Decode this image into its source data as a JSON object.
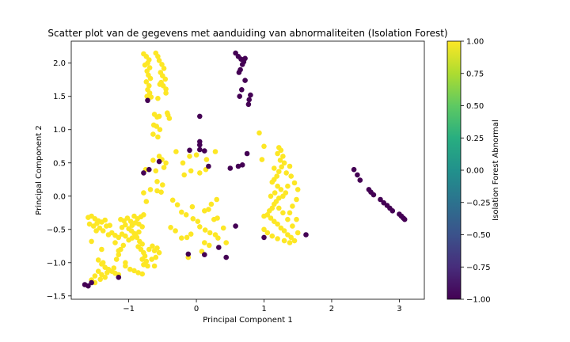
{
  "chart_data": {
    "type": "scatter",
    "title": "Scatter plot van de gegevens met aanduiding van abnormaliteiten (Isolation Forest)",
    "xlabel": "Principal Component 1",
    "ylabel": "Principal Component 2",
    "xlim": [
      -1.85,
      3.37
    ],
    "ylim": [
      -1.55,
      2.33
    ],
    "xticks": [
      -1,
      0,
      1,
      2,
      3
    ],
    "yticks": [
      -1.5,
      -1.0,
      -0.5,
      0.0,
      0.5,
      1.0,
      1.5,
      2.0
    ],
    "grid": false,
    "colorbar": {
      "label": "Isolation Forest Abnormal",
      "colormap": "viridis",
      "range": [
        -1.0,
        1.0
      ],
      "ticks": [
        -1.0,
        -0.75,
        -0.5,
        -0.25,
        0.0,
        0.25,
        0.5,
        0.75,
        1.0
      ],
      "tick_labels": [
        "−1.00",
        "−0.75",
        "−0.50",
        "−0.25",
        "0.00",
        "0.25",
        "0.50",
        "0.75",
        "1.00"
      ]
    },
    "colors": {
      "normal": "#fde725",
      "abnormal": "#440154"
    },
    "series": [
      {
        "value": 1,
        "points": [
          [
            -0.78,
            2.14
          ],
          [
            -0.74,
            2.1
          ],
          [
            -0.7,
            2.05
          ],
          [
            -0.72,
            2.0
          ],
          [
            -0.76,
            1.97
          ],
          [
            -0.69,
            1.93
          ],
          [
            -0.73,
            1.88
          ],
          [
            -0.71,
            1.82
          ],
          [
            -0.68,
            1.77
          ],
          [
            -0.74,
            1.72
          ],
          [
            -0.7,
            1.66
          ],
          [
            -0.72,
            1.6
          ],
          [
            -0.69,
            1.55
          ],
          [
            -0.73,
            1.5
          ],
          [
            -0.6,
            2.15
          ],
          [
            -0.57,
            2.1
          ],
          [
            -0.55,
            2.04
          ],
          [
            -0.51,
            1.98
          ],
          [
            -0.48,
            1.92
          ],
          [
            -0.53,
            1.86
          ],
          [
            -0.5,
            1.81
          ],
          [
            -0.46,
            1.76
          ],
          [
            -0.52,
            1.71
          ],
          [
            -0.49,
            1.66
          ],
          [
            -0.45,
            1.61
          ],
          [
            -0.54,
            1.68
          ],
          [
            -0.67,
            1.49
          ],
          [
            -0.57,
            1.47
          ],
          [
            -0.45,
            1.55
          ],
          [
            -0.62,
            1.23
          ],
          [
            -0.58,
            1.19
          ],
          [
            -0.55,
            1.2
          ],
          [
            -0.63,
            1.07
          ],
          [
            -0.59,
            1.05
          ],
          [
            -0.54,
            1.0
          ],
          [
            -0.64,
            0.93
          ],
          [
            -0.57,
            0.89
          ],
          [
            -0.43,
            1.25
          ],
          [
            -0.42,
            1.22
          ],
          [
            -0.4,
            1.17
          ],
          [
            -0.55,
            0.6
          ],
          [
            -0.51,
            0.55
          ],
          [
            -0.45,
            0.5
          ],
          [
            -0.48,
            0.43
          ],
          [
            -0.3,
            0.67
          ],
          [
            -0.2,
            0.5
          ],
          [
            -0.1,
            0.6
          ],
          [
            0.0,
            0.62
          ],
          [
            0.15,
            0.55
          ],
          [
            0.28,
            0.67
          ],
          [
            -0.6,
            0.38
          ],
          [
            -0.58,
            0.22
          ],
          [
            -0.5,
            0.17
          ],
          [
            -0.68,
            0.1
          ],
          [
            -0.78,
            0.05
          ],
          [
            -0.74,
            -0.08
          ],
          [
            -0.58,
            0.08
          ],
          [
            -0.52,
            0.06
          ],
          [
            -0.18,
            0.32
          ],
          [
            -0.08,
            0.38
          ],
          [
            0.05,
            0.35
          ],
          [
            0.14,
            0.4
          ],
          [
            -0.35,
            -0.06
          ],
          [
            -0.28,
            -0.13
          ],
          [
            -0.22,
            -0.24
          ],
          [
            -0.15,
            -0.28
          ],
          [
            -0.05,
            -0.34
          ],
          [
            0.02,
            -0.38
          ],
          [
            0.12,
            -0.22
          ],
          [
            0.18,
            -0.2
          ],
          [
            0.22,
            -0.12
          ],
          [
            0.26,
            -0.35
          ],
          [
            0.31,
            -0.33
          ],
          [
            -0.38,
            -0.47
          ],
          [
            -0.31,
            -0.52
          ],
          [
            -0.22,
            -0.63
          ],
          [
            -0.14,
            -0.62
          ],
          [
            -0.08,
            -0.57
          ],
          [
            0.05,
            -0.46
          ],
          [
            0.13,
            -0.51
          ],
          [
            0.2,
            -0.55
          ],
          [
            0.28,
            -0.58
          ],
          [
            0.32,
            -0.63
          ],
          [
            0.4,
            -0.48
          ],
          [
            0.12,
            -0.7
          ],
          [
            0.19,
            -0.74
          ],
          [
            0.08,
            -0.83
          ],
          [
            -0.12,
            -0.92
          ],
          [
            0.44,
            -0.7
          ],
          [
            -0.06,
            -0.16
          ],
          [
            0.3,
            -0.05
          ],
          [
            -0.75,
            0.4
          ],
          [
            -0.64,
            0.54
          ],
          [
            -1.6,
            -0.32
          ],
          [
            -1.55,
            -0.3
          ],
          [
            -1.5,
            -0.34
          ],
          [
            -1.45,
            -0.37
          ],
          [
            -1.4,
            -0.39
          ],
          [
            -1.35,
            -0.36
          ],
          [
            -1.58,
            -0.42
          ],
          [
            -1.52,
            -0.45
          ],
          [
            -1.47,
            -0.41
          ],
          [
            -1.43,
            -0.48
          ],
          [
            -1.38,
            -0.52
          ],
          [
            -1.33,
            -0.45
          ],
          [
            -1.28,
            -0.44
          ],
          [
            -1.25,
            -0.55
          ],
          [
            -1.2,
            -0.59
          ],
          [
            -1.15,
            -0.62
          ],
          [
            -1.1,
            -0.57
          ],
          [
            -1.05,
            -0.6
          ],
          [
            -1.0,
            -0.66
          ],
          [
            -0.95,
            -0.63
          ],
          [
            -0.9,
            -0.58
          ],
          [
            -0.85,
            -0.54
          ],
          [
            -1.12,
            -0.35
          ],
          [
            -1.07,
            -0.37
          ],
          [
            -1.02,
            -0.33
          ],
          [
            -0.97,
            -0.38
          ],
          [
            -0.92,
            -0.3
          ],
          [
            -0.87,
            -0.34
          ],
          [
            -0.82,
            -0.31
          ],
          [
            -0.78,
            -0.28
          ],
          [
            -1.1,
            -0.47
          ],
          [
            -1.05,
            -0.43
          ],
          [
            -1.0,
            -0.49
          ],
          [
            -0.95,
            -0.44
          ],
          [
            -0.9,
            -0.4
          ],
          [
            -0.85,
            -0.42
          ],
          [
            -0.8,
            -0.46
          ],
          [
            -0.96,
            -0.52
          ],
          [
            -0.92,
            -0.56
          ],
          [
            -0.88,
            -0.62
          ],
          [
            -0.84,
            -0.68
          ],
          [
            -0.8,
            -0.72
          ],
          [
            -0.86,
            -0.76
          ],
          [
            -0.82,
            -0.8
          ],
          [
            -0.78,
            -0.85
          ],
          [
            -0.76,
            -0.9
          ],
          [
            -0.8,
            -0.95
          ],
          [
            -0.74,
            -0.98
          ],
          [
            -0.78,
            -1.03
          ],
          [
            -0.72,
            -1.05
          ],
          [
            -0.7,
            -0.8
          ],
          [
            -0.65,
            -0.75
          ],
          [
            -0.62,
            -0.82
          ],
          [
            -0.58,
            -0.78
          ],
          [
            -0.55,
            -0.85
          ],
          [
            -0.6,
            -0.92
          ],
          [
            -0.66,
            -0.95
          ],
          [
            -1.08,
            -0.74
          ],
          [
            -1.12,
            -0.8
          ],
          [
            -1.15,
            -0.88
          ],
          [
            -1.18,
            -0.95
          ],
          [
            -1.3,
            -0.58
          ],
          [
            -1.48,
            -0.52
          ],
          [
            -1.55,
            -0.68
          ],
          [
            -1.4,
            -0.8
          ],
          [
            -1.2,
            -0.7
          ],
          [
            -1.45,
            -0.96
          ],
          [
            -1.4,
            -1.02
          ],
          [
            -1.35,
            -1.07
          ],
          [
            -1.3,
            -1.1
          ],
          [
            -1.25,
            -1.13
          ],
          [
            -1.2,
            -1.16
          ],
          [
            -1.15,
            -1.18
          ],
          [
            -1.45,
            -1.13
          ],
          [
            -1.4,
            -1.18
          ],
          [
            -1.35,
            -1.22
          ],
          [
            -1.5,
            -1.2
          ],
          [
            -1.55,
            -1.26
          ],
          [
            -1.5,
            -1.3
          ],
          [
            -1.42,
            -1.25
          ],
          [
            -1.32,
            -1.15
          ],
          [
            -1.22,
            -1.08
          ],
          [
            -1.05,
            -1.05
          ],
          [
            -0.98,
            -1.1
          ],
          [
            -0.92,
            -1.12
          ],
          [
            -0.86,
            -1.15
          ],
          [
            -0.8,
            -1.17
          ],
          [
            -0.62,
            -1.05
          ],
          [
            -1.15,
            -0.82
          ],
          [
            -1.05,
            -1.0
          ],
          [
            -1.38,
            -1.0
          ],
          [
            0.93,
            0.95
          ],
          [
            1.0,
            0.75
          ],
          [
            0.97,
            0.55
          ],
          [
            1.22,
            0.73
          ],
          [
            1.25,
            0.69
          ],
          [
            1.2,
            0.64
          ],
          [
            1.28,
            0.6
          ],
          [
            1.24,
            0.54
          ],
          [
            1.3,
            0.5
          ],
          [
            1.26,
            0.44
          ],
          [
            1.22,
            0.37
          ],
          [
            1.19,
            0.3
          ],
          [
            1.15,
            0.25
          ],
          [
            1.12,
            0.21
          ],
          [
            1.2,
            0.15
          ],
          [
            1.25,
            0.1
          ],
          [
            1.32,
            0.05
          ],
          [
            1.28,
            0.0
          ],
          [
            1.22,
            -0.03
          ],
          [
            1.18,
            -0.08
          ],
          [
            1.15,
            -0.12
          ],
          [
            1.12,
            -0.18
          ],
          [
            1.08,
            -0.22
          ],
          [
            1.05,
            -0.28
          ],
          [
            1.1,
            -0.33
          ],
          [
            1.15,
            -0.38
          ],
          [
            1.2,
            -0.42
          ],
          [
            1.25,
            -0.48
          ],
          [
            1.3,
            -0.52
          ],
          [
            1.35,
            -0.58
          ],
          [
            1.4,
            -0.62
          ],
          [
            1.45,
            -0.67
          ],
          [
            1.38,
            -0.7
          ],
          [
            1.3,
            -0.67
          ],
          [
            1.2,
            -0.64
          ],
          [
            1.12,
            -0.6
          ],
          [
            1.05,
            -0.55
          ],
          [
            1.0,
            -0.5
          ],
          [
            1.0,
            -0.3
          ],
          [
            1.4,
            0.3
          ],
          [
            1.45,
            0.2
          ],
          [
            1.5,
            0.1
          ],
          [
            1.48,
            -0.05
          ],
          [
            1.42,
            -0.15
          ],
          [
            1.38,
            -0.25
          ],
          [
            1.33,
            0.35
          ],
          [
            1.38,
            0.45
          ],
          [
            1.15,
            0.42
          ],
          [
            1.48,
            -0.35
          ],
          [
            1.5,
            -0.55
          ],
          [
            1.42,
            -0.45
          ],
          [
            1.35,
            -0.35
          ],
          [
            1.28,
            -0.25
          ],
          [
            1.22,
            -0.18
          ],
          [
            1.16,
            0.05
          ],
          [
            1.1,
            0.0
          ],
          [
            1.35,
            0.15
          ]
        ]
      },
      {
        "value": -1,
        "points": [
          [
            -0.72,
            1.44
          ],
          [
            0.05,
            1.2
          ],
          [
            0.58,
            2.15
          ],
          [
            0.62,
            2.1
          ],
          [
            0.66,
            2.06
          ],
          [
            0.7,
            2.02
          ],
          [
            0.72,
            2.07
          ],
          [
            0.68,
            1.98
          ],
          [
            0.65,
            1.9
          ],
          [
            0.63,
            1.86
          ],
          [
            0.67,
            1.6
          ],
          [
            0.72,
            1.74
          ],
          [
            0.78,
            1.45
          ],
          [
            0.8,
            1.52
          ],
          [
            0.64,
            1.5
          ],
          [
            0.77,
            1.38
          ],
          [
            -0.55,
            0.52
          ],
          [
            -0.78,
            0.35
          ],
          [
            -0.7,
            0.4
          ],
          [
            -0.1,
            0.69
          ],
          [
            0.05,
            0.82
          ],
          [
            0.05,
            0.77
          ],
          [
            0.05,
            0.7
          ],
          [
            0.12,
            0.68
          ],
          [
            0.18,
            0.45
          ],
          [
            0.5,
            0.42
          ],
          [
            0.62,
            0.45
          ],
          [
            0.68,
            0.47
          ],
          [
            0.75,
            0.64
          ],
          [
            0.58,
            -0.45
          ],
          [
            0.33,
            -0.77
          ],
          [
            0.44,
            -0.92
          ],
          [
            0.12,
            -0.88
          ],
          [
            -0.12,
            -0.87
          ],
          [
            1.0,
            -0.62
          ],
          [
            1.62,
            -0.58
          ],
          [
            2.33,
            0.4
          ],
          [
            2.38,
            0.32
          ],
          [
            2.42,
            0.24
          ],
          [
            2.55,
            0.1
          ],
          [
            2.58,
            0.06
          ],
          [
            2.62,
            0.02
          ],
          [
            2.72,
            -0.05
          ],
          [
            2.77,
            -0.1
          ],
          [
            2.82,
            -0.14
          ],
          [
            2.86,
            -0.18
          ],
          [
            2.9,
            -0.22
          ],
          [
            3.0,
            -0.27
          ],
          [
            3.03,
            -0.3
          ],
          [
            3.06,
            -0.33
          ],
          [
            3.08,
            -0.35
          ],
          [
            -1.65,
            -1.33
          ],
          [
            -1.6,
            -1.35
          ],
          [
            -1.55,
            -1.3
          ],
          [
            -1.15,
            -1.22
          ]
        ]
      }
    ]
  }
}
